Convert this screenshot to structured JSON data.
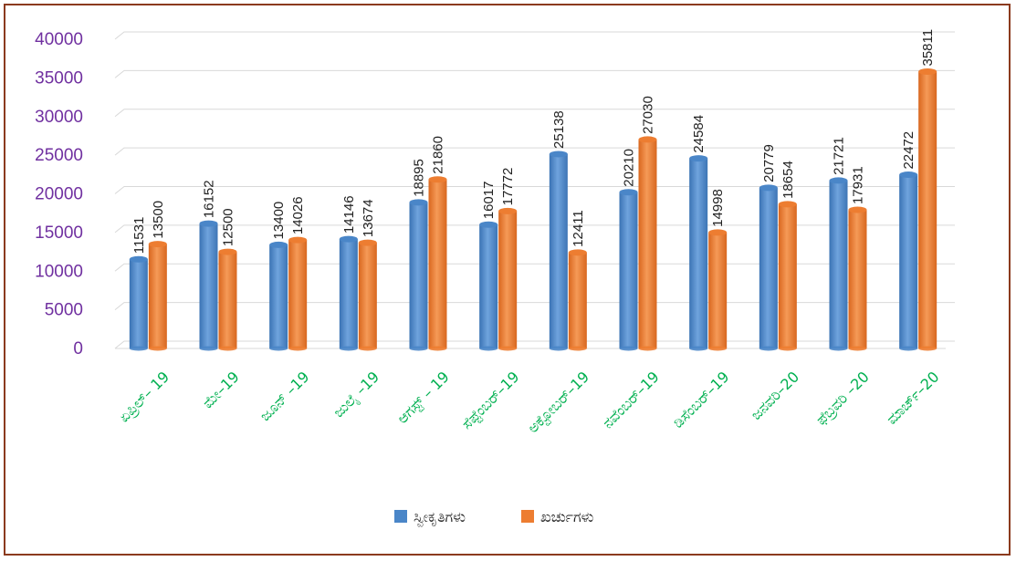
{
  "chart_data": {
    "type": "bar",
    "categories": [
      "ಏಪ್ರಿಲ್– 19",
      "ಮೇ–19",
      "ಜೂನ್ –19",
      "ಜುಲೈ –19",
      "ಆಗಸ್ಟ್ – 19",
      "ಸೆಪ್ಟೆಂಬರ್–19",
      "ಅಕ್ಟೋಬರ್–19",
      "ನವೆಂಬರ್–19",
      "ಡಿಸೆಂಬರ್–19",
      "ಜನವರಿ–20",
      "ಫೆಬ್ರವರಿ –20",
      "ಮಾರ್ಚ್–20"
    ],
    "series": [
      {
        "name": "ಸ್ವೀಕೃತಿಗಳು",
        "color": "#4A86C8",
        "values": [
          11531,
          16152,
          13400,
          14146,
          18895,
          16017,
          25138,
          20210,
          24584,
          20779,
          21721,
          22472
        ]
      },
      {
        "name": "ಖರ್ಚುಗಳು",
        "color": "#ED7D31",
        "values": [
          13500,
          12500,
          14026,
          13674,
          21860,
          17772,
          12411,
          27030,
          14998,
          18654,
          17931,
          35811
        ]
      }
    ],
    "yticks": [
      "0",
      "5000",
      "10000",
      "15000",
      "20000",
      "25000",
      "30000",
      "35000",
      "40000"
    ],
    "ylim": [
      0,
      40000
    ],
    "grid": true,
    "legend_position": "bottom"
  }
}
